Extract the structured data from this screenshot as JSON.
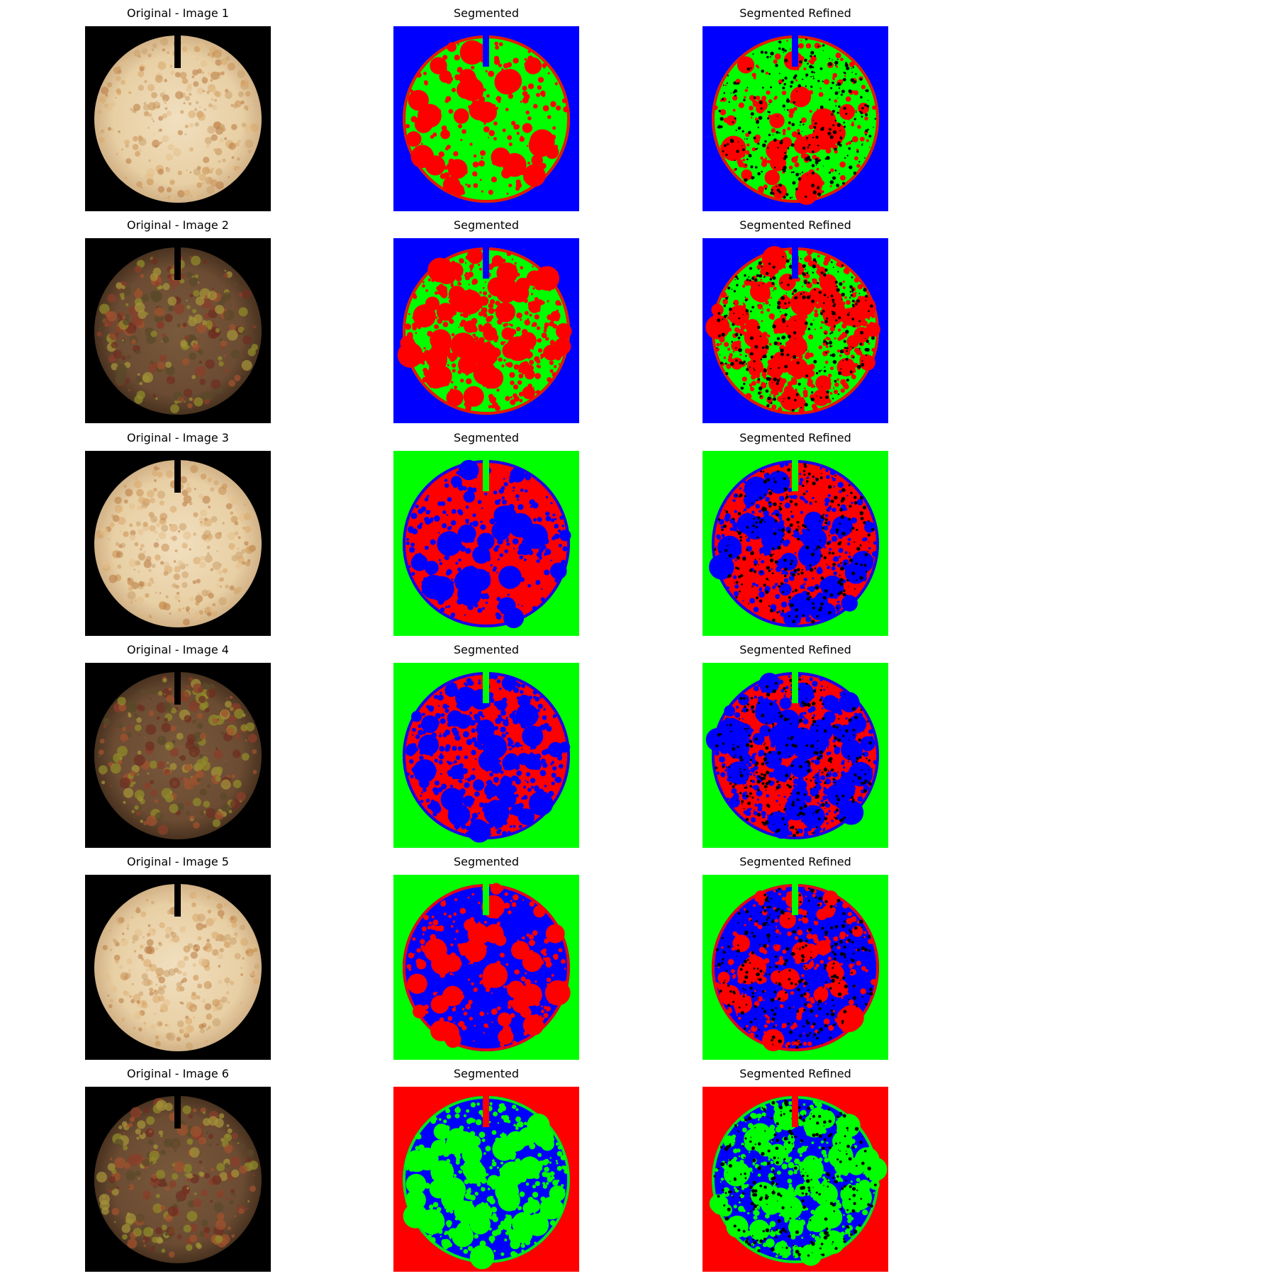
{
  "figure": {
    "rows": [
      {
        "panels": [
          {
            "title": "Original - Image 1",
            "kind": "photo",
            "variant": "light"
          },
          {
            "title": "Segmented",
            "kind": "mask",
            "colors": {
              "background": "#0000ff",
              "disc": "#00ff00",
              "spots": "#ff0000"
            }
          },
          {
            "title": "Segmented Refined",
            "kind": "mask-refined",
            "colors": {
              "background": "#0000ff",
              "disc": "#00ff00",
              "spots": "#ff0000"
            }
          }
        ]
      },
      {
        "panels": [
          {
            "title": "Original - Image 2",
            "kind": "photo",
            "variant": "dark"
          },
          {
            "title": "Segmented",
            "kind": "mask",
            "colors": {
              "background": "#0000ff",
              "disc": "#00ff00",
              "spots": "#ff0000"
            }
          },
          {
            "title": "Segmented Refined",
            "kind": "mask-refined",
            "colors": {
              "background": "#0000ff",
              "disc": "#00ff00",
              "spots": "#ff0000"
            }
          }
        ]
      },
      {
        "panels": [
          {
            "title": "Original - Image 3",
            "kind": "photo",
            "variant": "light"
          },
          {
            "title": "Segmented",
            "kind": "mask",
            "colors": {
              "background": "#00ff00",
              "disc": "#ff0000",
              "spots": "#0000ff"
            }
          },
          {
            "title": "Segmented Refined",
            "kind": "mask-refined",
            "colors": {
              "background": "#00ff00",
              "disc": "#ff0000",
              "spots": "#0000ff"
            }
          }
        ]
      },
      {
        "panels": [
          {
            "title": "Original - Image 4",
            "kind": "photo",
            "variant": "dark"
          },
          {
            "title": "Segmented",
            "kind": "mask",
            "colors": {
              "background": "#00ff00",
              "disc": "#ff0000",
              "spots": "#0000ff"
            }
          },
          {
            "title": "Segmented Refined",
            "kind": "mask-refined",
            "colors": {
              "background": "#00ff00",
              "disc": "#ff0000",
              "spots": "#0000ff"
            }
          }
        ]
      },
      {
        "panels": [
          {
            "title": "Original - Image 5",
            "kind": "photo",
            "variant": "light"
          },
          {
            "title": "Segmented",
            "kind": "mask",
            "colors": {
              "background": "#00ff00",
              "disc": "#0000ff",
              "spots": "#ff0000"
            }
          },
          {
            "title": "Segmented Refined",
            "kind": "mask-refined",
            "colors": {
              "background": "#00ff00",
              "disc": "#0000ff",
              "spots": "#ff0000"
            }
          }
        ]
      },
      {
        "panels": [
          {
            "title": "Original - Image 6",
            "kind": "photo",
            "variant": "dark"
          },
          {
            "title": "Segmented",
            "kind": "mask",
            "colors": {
              "background": "#ff0000",
              "disc": "#0000ff",
              "spots": "#00ff00"
            }
          },
          {
            "title": "Segmented Refined",
            "kind": "mask-refined",
            "colors": {
              "background": "#ff0000",
              "disc": "#0000ff",
              "spots": "#00ff00"
            }
          }
        ]
      }
    ]
  }
}
